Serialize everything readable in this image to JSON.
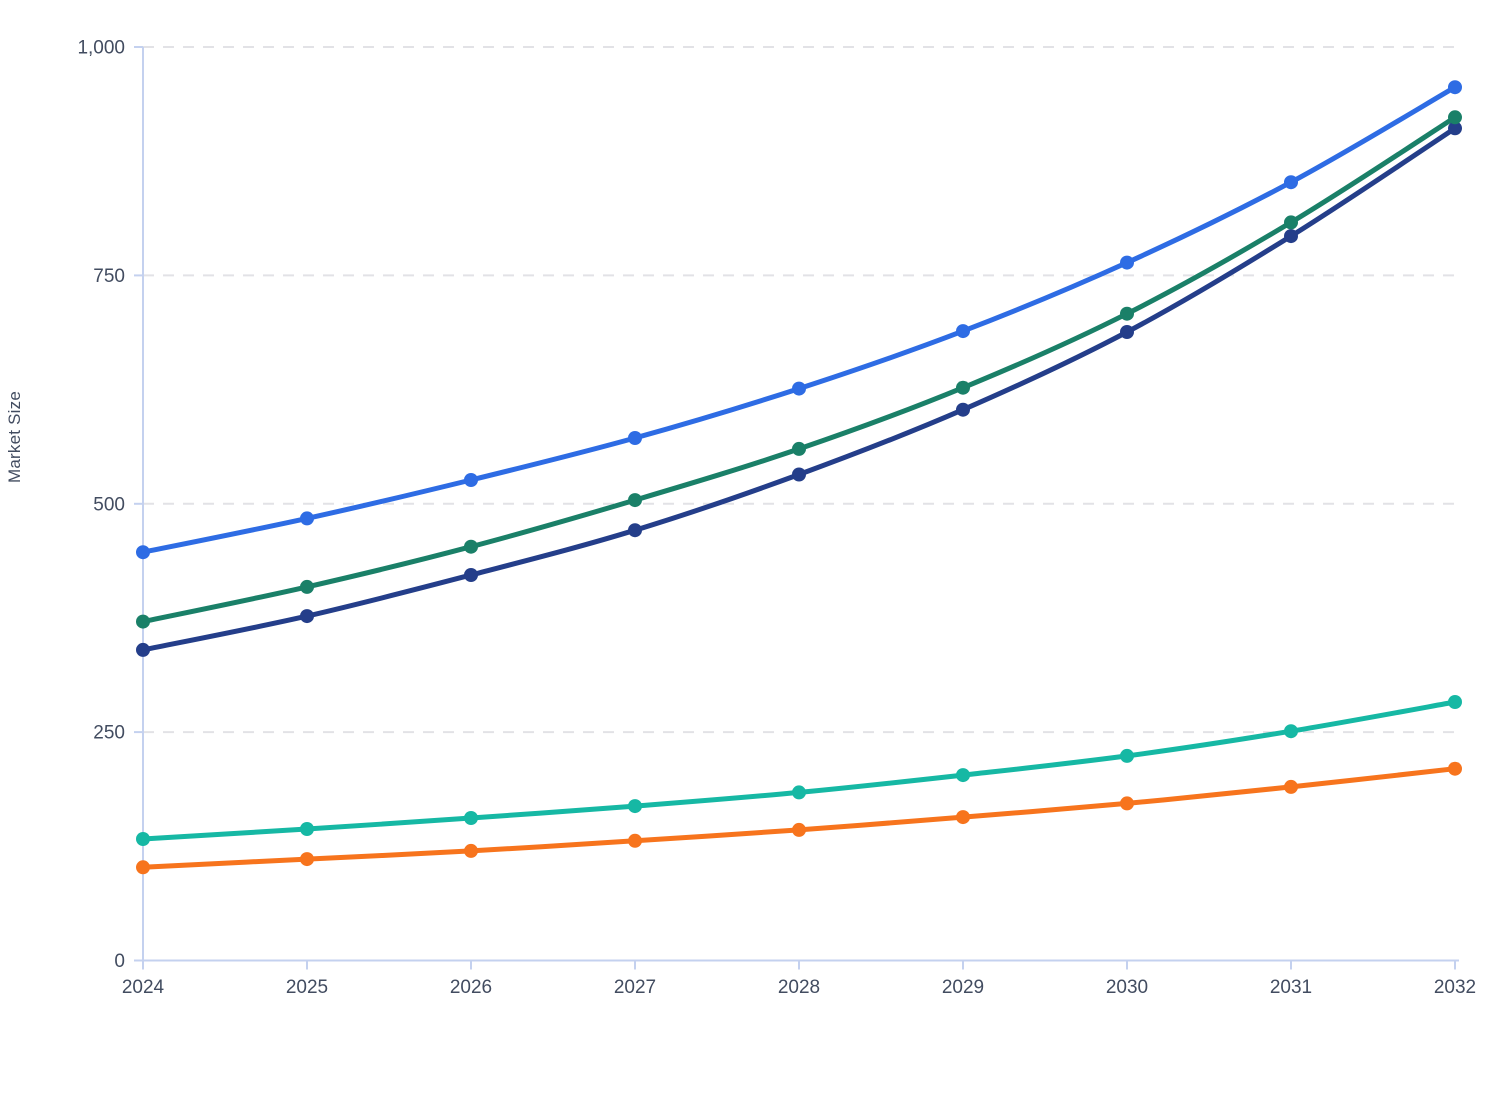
{
  "page": {
    "background": "#ffffff",
    "title": ""
  },
  "chart_data": {
    "type": "line",
    "title": "",
    "xlabel": "",
    "ylabel": "Market Size",
    "x": [
      2024,
      2025,
      2026,
      2027,
      2028,
      2029,
      2030,
      2031,
      2032
    ],
    "x_tick_labels": [
      "2024",
      "2025",
      "2026",
      "2027",
      "2028",
      "2029",
      "2030",
      "2031",
      "2032"
    ],
    "y_ticks": [
      0,
      250,
      500,
      750,
      1000
    ],
    "y_tick_labels": [
      "0",
      "250",
      "500",
      "750",
      "1,000"
    ],
    "ylim": [
      0,
      1000
    ],
    "grid": "horizontal-dashed",
    "legend_position": "none",
    "marker": "circle",
    "line_style": "smooth",
    "series": [
      {
        "name": "navy",
        "color": "#243e8a",
        "values": [
          340,
          377,
          422,
          471,
          532,
          603,
          688,
          793,
          911
        ]
      },
      {
        "name": "green",
        "color": "#1a8068",
        "values": [
          371,
          409,
          453,
          504,
          560,
          627,
          708,
          808,
          923
        ]
      },
      {
        "name": "blue",
        "color": "#2e6ce4",
        "values": [
          447,
          484,
          526,
          572,
          626,
          689,
          764,
          852,
          956
        ]
      },
      {
        "name": "teal",
        "color": "#16b8a4",
        "values": [
          133,
          144,
          156,
          169,
          184,
          203,
          224,
          251,
          283
        ]
      },
      {
        "name": "orange",
        "color": "#f7741d",
        "values": [
          102,
          111,
          120,
          131,
          143,
          157,
          172,
          190,
          210
        ]
      }
    ],
    "colors": {
      "axis_line": "#c4d1ef",
      "grid_line": "#e2e2e6",
      "tick_label": "#424c60"
    }
  }
}
